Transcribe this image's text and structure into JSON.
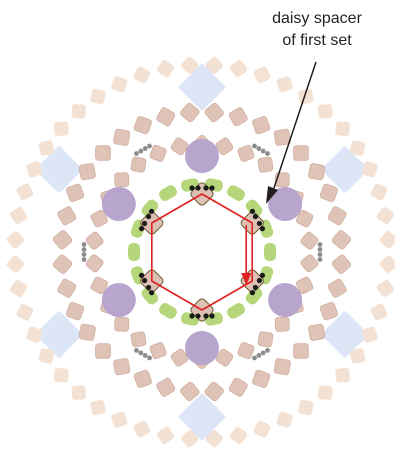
{
  "annotation": {
    "line1": "daisy spacer",
    "line2": "of first set"
  },
  "colors": {
    "background": "#ffffff",
    "outer_bead": "#f3e2d3",
    "mid_bead": "#dec3b6",
    "mid_bead_stroke": "#c9a89a",
    "pearl": "#b8a5cd",
    "crystal": "#dce6f7",
    "leaf_bead": "#b5d67b",
    "leaf_bead_stroke": "#8fb255",
    "bicone": "#dcc0b3",
    "bicone_stroke": "#6b5a2e",
    "thread": "#e02020",
    "seed_black": "#1a1a1a",
    "seed_grey": "#8c8c8c",
    "pointer": "#231f20"
  },
  "components": [
    "outer-bead-ring",
    "middle-bead-ring",
    "inner-bead-ring",
    "pearl",
    "crystal-square",
    "leaf-bead",
    "bicone-bead",
    "seed-bead-cluster",
    "thread-path",
    "pointer-arrow"
  ]
}
